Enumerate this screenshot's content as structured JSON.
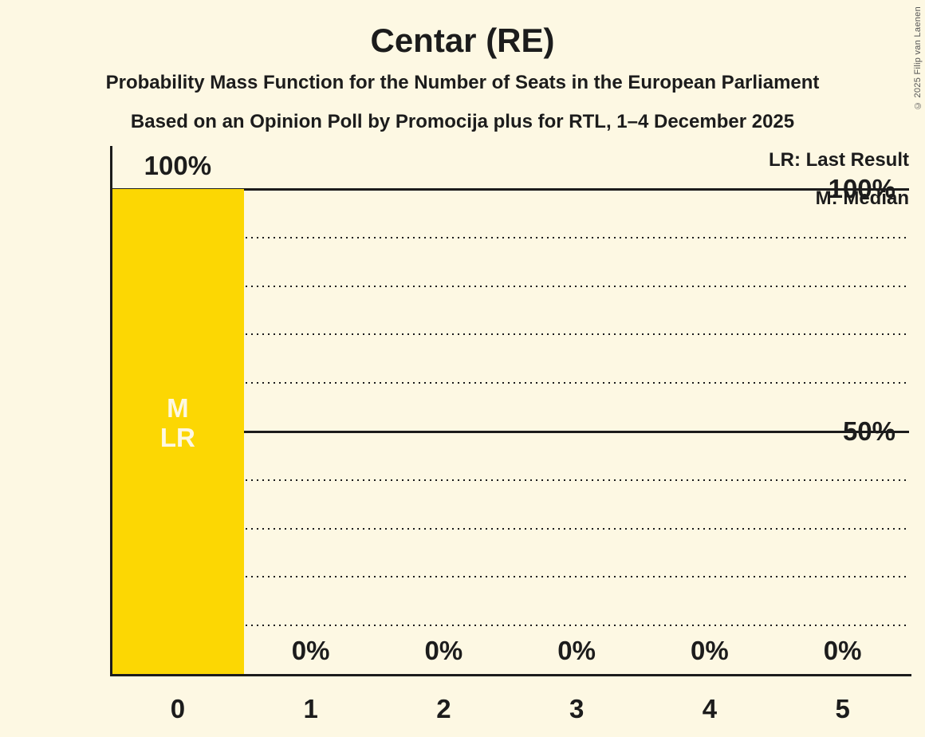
{
  "title": "Centar (RE)",
  "subtitle1": "Probability Mass Function for the Number of Seats in the European Parliament",
  "subtitle2": "Based on an Opinion Poll by Promocija plus for RTL, 1–4 December 2025",
  "legend": {
    "lr": "LR: Last Result",
    "m": "M: Median"
  },
  "copyright": "© 2025 Filip van Laenen",
  "colors": {
    "background": "#FDF8E3",
    "bar": "#FCD703",
    "text": "#1C1C1C",
    "bar_label": "#FDF8E3"
  },
  "chart_data": {
    "type": "bar",
    "title": "Centar (RE)",
    "categories": [
      "0",
      "1",
      "2",
      "3",
      "4",
      "5"
    ],
    "values": [
      100,
      0,
      0,
      0,
      0,
      0
    ],
    "value_labels": [
      "100%",
      "0%",
      "0%",
      "0%",
      "0%",
      "0%"
    ],
    "annotations": [
      [
        "M",
        "LR"
      ],
      [],
      [],
      [],
      [],
      []
    ],
    "ylim": [
      0,
      100
    ],
    "yticks": [
      {
        "value": 100,
        "label": "100%"
      },
      {
        "value": 50,
        "label": "50%"
      }
    ],
    "gridlines": {
      "dotted": [
        10,
        20,
        30,
        40,
        60,
        70,
        80,
        90
      ],
      "solid": [
        50,
        100
      ]
    },
    "grid": true,
    "legend_position": "top-right"
  }
}
